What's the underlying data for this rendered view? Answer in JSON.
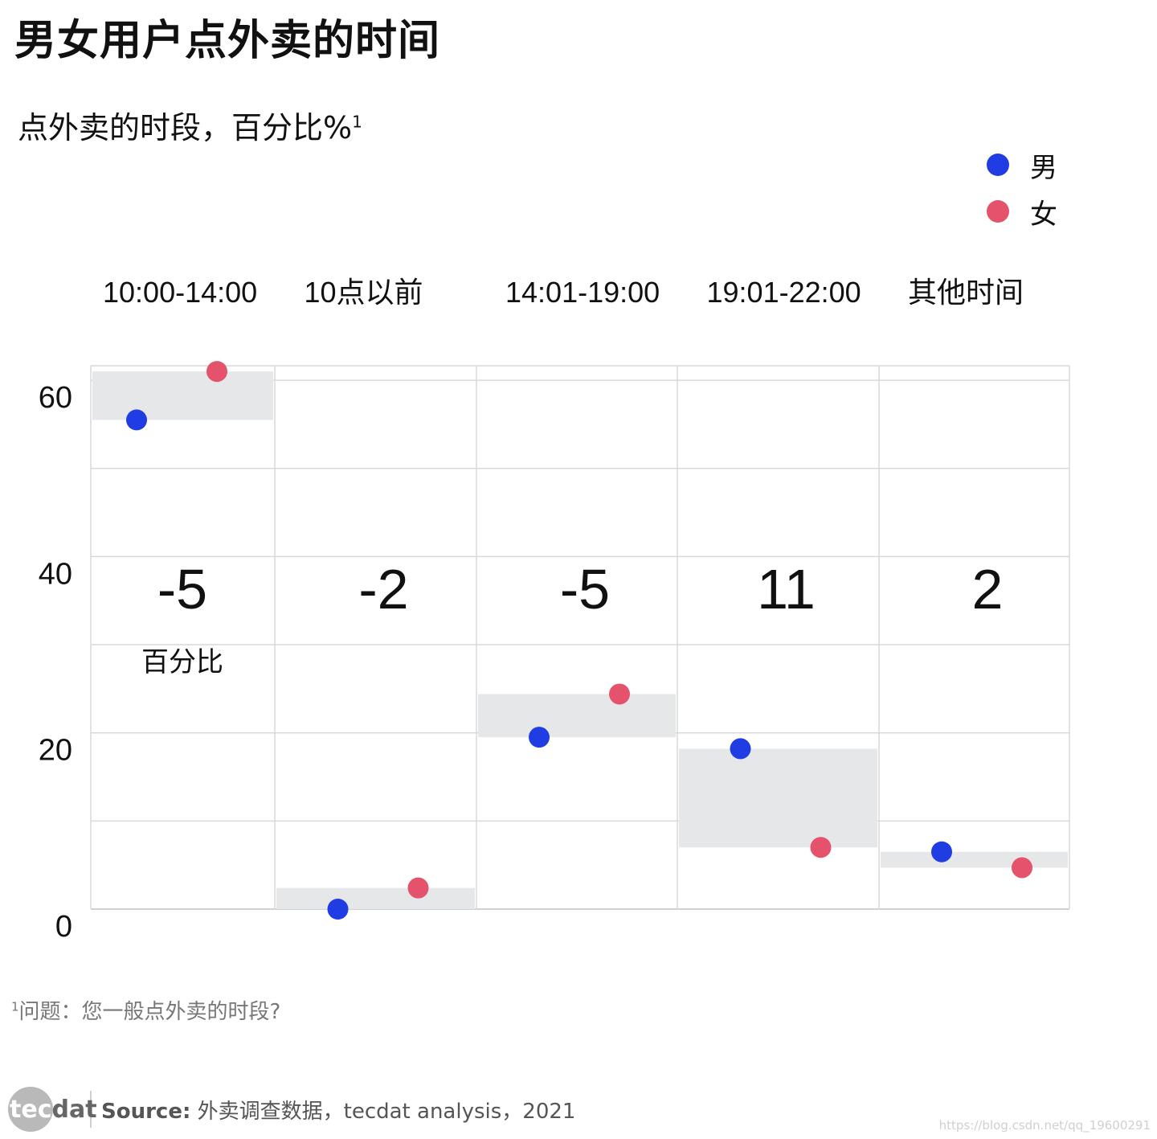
{
  "title": "男女用户点外卖的时间",
  "subtitle": "点外卖的时段，百分比%",
  "subtitle_sup": "1",
  "legend": [
    {
      "label": "男",
      "color": "#1f3de3"
    },
    {
      "label": "女",
      "color": "#e5526b"
    }
  ],
  "diff_caption": "百分比",
  "footnote_sup": "1",
  "footnote": "问题：您一般点外卖的时段?",
  "logo": {
    "part1": "tec",
    "part2": "dat"
  },
  "source_label": "Source:",
  "source_text": " 外卖调查数据，tecdat analysis，2021",
  "watermark": "https://blog.csdn.net/qq_19600291",
  "chart_data": {
    "type": "scatter",
    "categories": [
      "10:00-14:00",
      "10点以前",
      "14:01-19:00",
      "19:01-22:00",
      "其他时间"
    ],
    "series": [
      {
        "name": "男",
        "color": "#1f3de3",
        "values": [
          55.5,
          0,
          19.5,
          18.2,
          6.5
        ]
      },
      {
        "name": "女",
        "color": "#e5526b",
        "values": [
          61,
          2.4,
          24.4,
          7,
          4.7
        ]
      }
    ],
    "differences": [
      "-5",
      "-2",
      "-5",
      "11",
      "2"
    ],
    "yticks": [
      0,
      20,
      40,
      60
    ],
    "ylim": [
      0,
      62
    ],
    "grid": true,
    "range_band_color": "#e6e7e9",
    "legend_position": "top-right"
  }
}
